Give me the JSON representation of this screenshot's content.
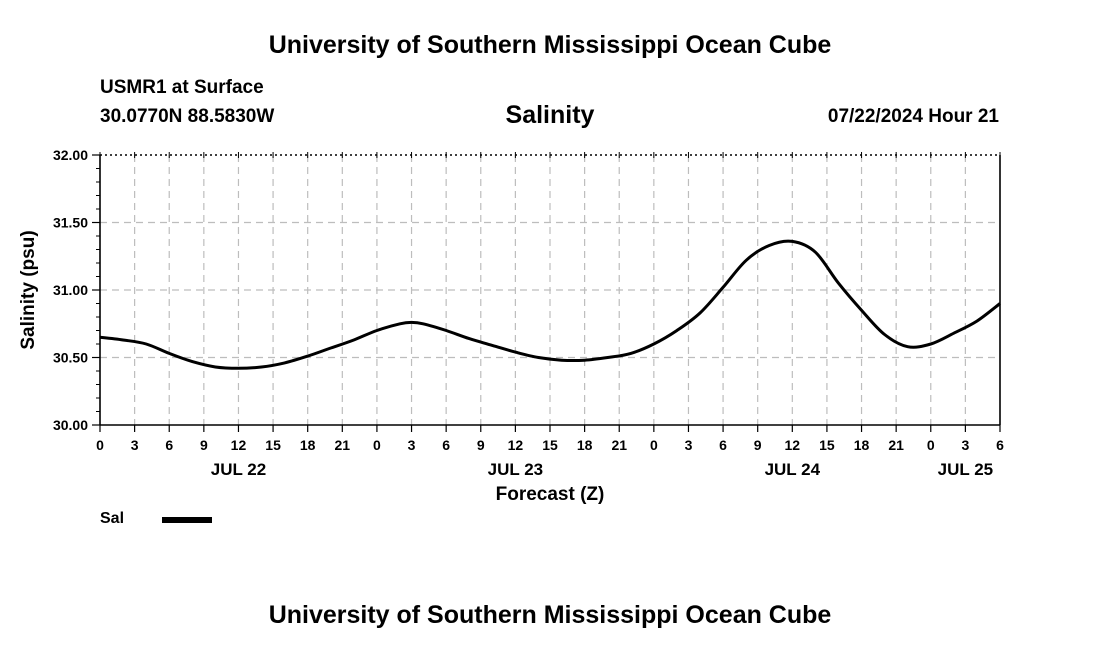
{
  "header": {
    "title": "University of Southern Mississippi Ocean Cube",
    "station": "USMR1 at Surface",
    "coords": "30.0770N  88.5830W",
    "variable": "Salinity",
    "datetime": "07/22/2024 Hour 21"
  },
  "footer": {
    "title": "University of Southern Mississippi Ocean Cube"
  },
  "chart_data": {
    "type": "line",
    "title": "Salinity",
    "xlabel": "Forecast (Z)",
    "ylabel": "Salinity (psu)",
    "ylim": [
      30.0,
      32.0
    ],
    "xlim": [
      0,
      78
    ],
    "grid": true,
    "y_ticks": [
      "30.00",
      "30.50",
      "31.00",
      "31.50",
      "32.00"
    ],
    "y_tick_values": [
      30.0,
      30.5,
      31.0,
      31.5,
      32.0
    ],
    "x_tick_hours": [
      0,
      3,
      6,
      9,
      12,
      15,
      18,
      21,
      24,
      27,
      30,
      33,
      36,
      39,
      42,
      45,
      48,
      51,
      54,
      57,
      60,
      63,
      66,
      69,
      72,
      75,
      78
    ],
    "x_tick_labels": [
      "0",
      "3",
      "6",
      "9",
      "12",
      "15",
      "18",
      "21",
      "0",
      "3",
      "6",
      "9",
      "12",
      "15",
      "18",
      "21",
      "0",
      "3",
      "6",
      "9",
      "12",
      "15",
      "18",
      "21",
      "0",
      "3",
      "6"
    ],
    "date_labels": [
      {
        "label": "JUL 22",
        "hour": 12
      },
      {
        "label": "JUL 23",
        "hour": 36
      },
      {
        "label": "JUL 24",
        "hour": 60
      },
      {
        "label": "JUL 25",
        "hour": 75
      }
    ],
    "series": [
      {
        "name": "Sal",
        "color": "#000000",
        "x": [
          0,
          2,
          4,
          6,
          8,
          10,
          12,
          14,
          16,
          18,
          20,
          22,
          24,
          26,
          27,
          28,
          30,
          32,
          34,
          36,
          38,
          40,
          42,
          44,
          46,
          48,
          50,
          52,
          54,
          56,
          58,
          60,
          62,
          64,
          66,
          68,
          70,
          72,
          74,
          76,
          78
        ],
        "values": [
          30.65,
          30.63,
          30.6,
          30.53,
          30.47,
          30.43,
          30.42,
          30.43,
          30.46,
          30.51,
          30.57,
          30.63,
          30.7,
          30.75,
          30.76,
          30.75,
          30.7,
          30.64,
          30.59,
          30.54,
          30.5,
          30.48,
          30.48,
          30.5,
          30.53,
          30.6,
          30.7,
          30.83,
          31.02,
          31.22,
          31.33,
          31.36,
          31.28,
          31.05,
          30.85,
          30.67,
          30.58,
          30.6,
          30.68,
          30.77,
          30.9
        ]
      }
    ]
  },
  "legend": {
    "label": "Sal"
  }
}
